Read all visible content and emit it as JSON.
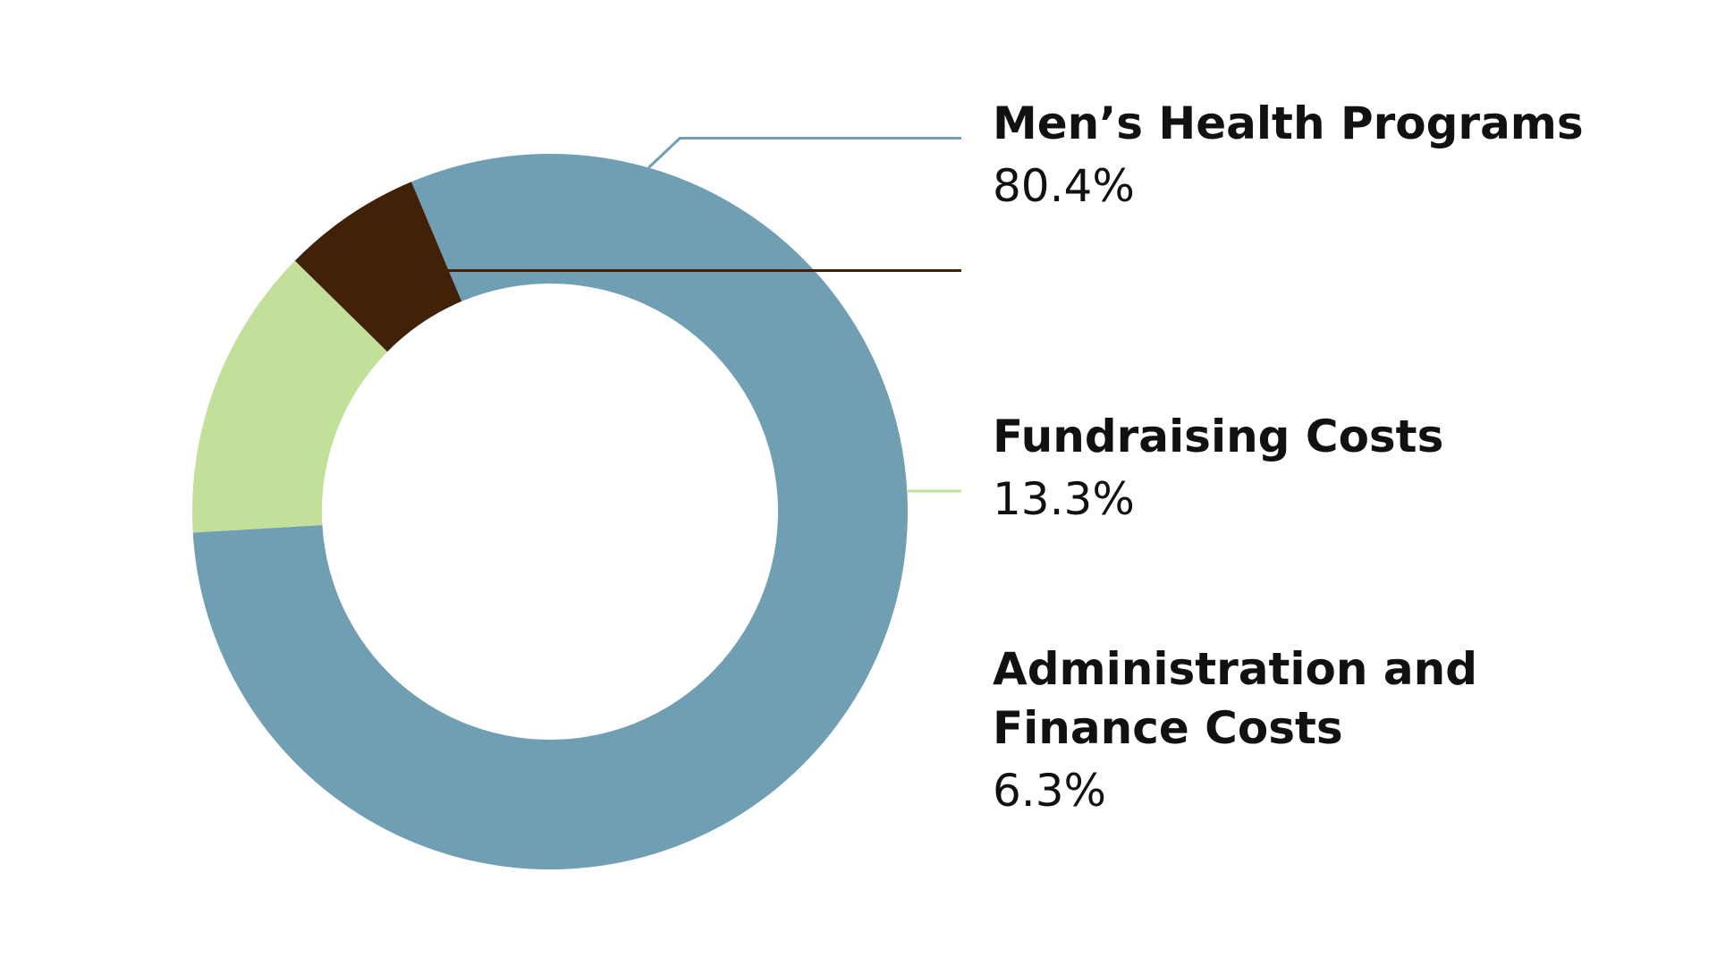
{
  "chart_data": {
    "type": "pie",
    "donut": true,
    "categories": [
      "Men’s Health Programs",
      "Fundraising Costs",
      "Administration and Finance Costs"
    ],
    "values": [
      80.4,
      13.3,
      6.3
    ],
    "value_labels": [
      "80.4%",
      "13.3%",
      "6.3%"
    ],
    "label_lines": [
      [
        "Men’s Health Programs"
      ],
      [
        "Fundraising Costs"
      ],
      [
        "Administration and",
        "Finance Costs"
      ]
    ],
    "colors": [
      "#709eb3",
      "#c2e09a",
      "#412208"
    ],
    "legend_position": "right"
  }
}
